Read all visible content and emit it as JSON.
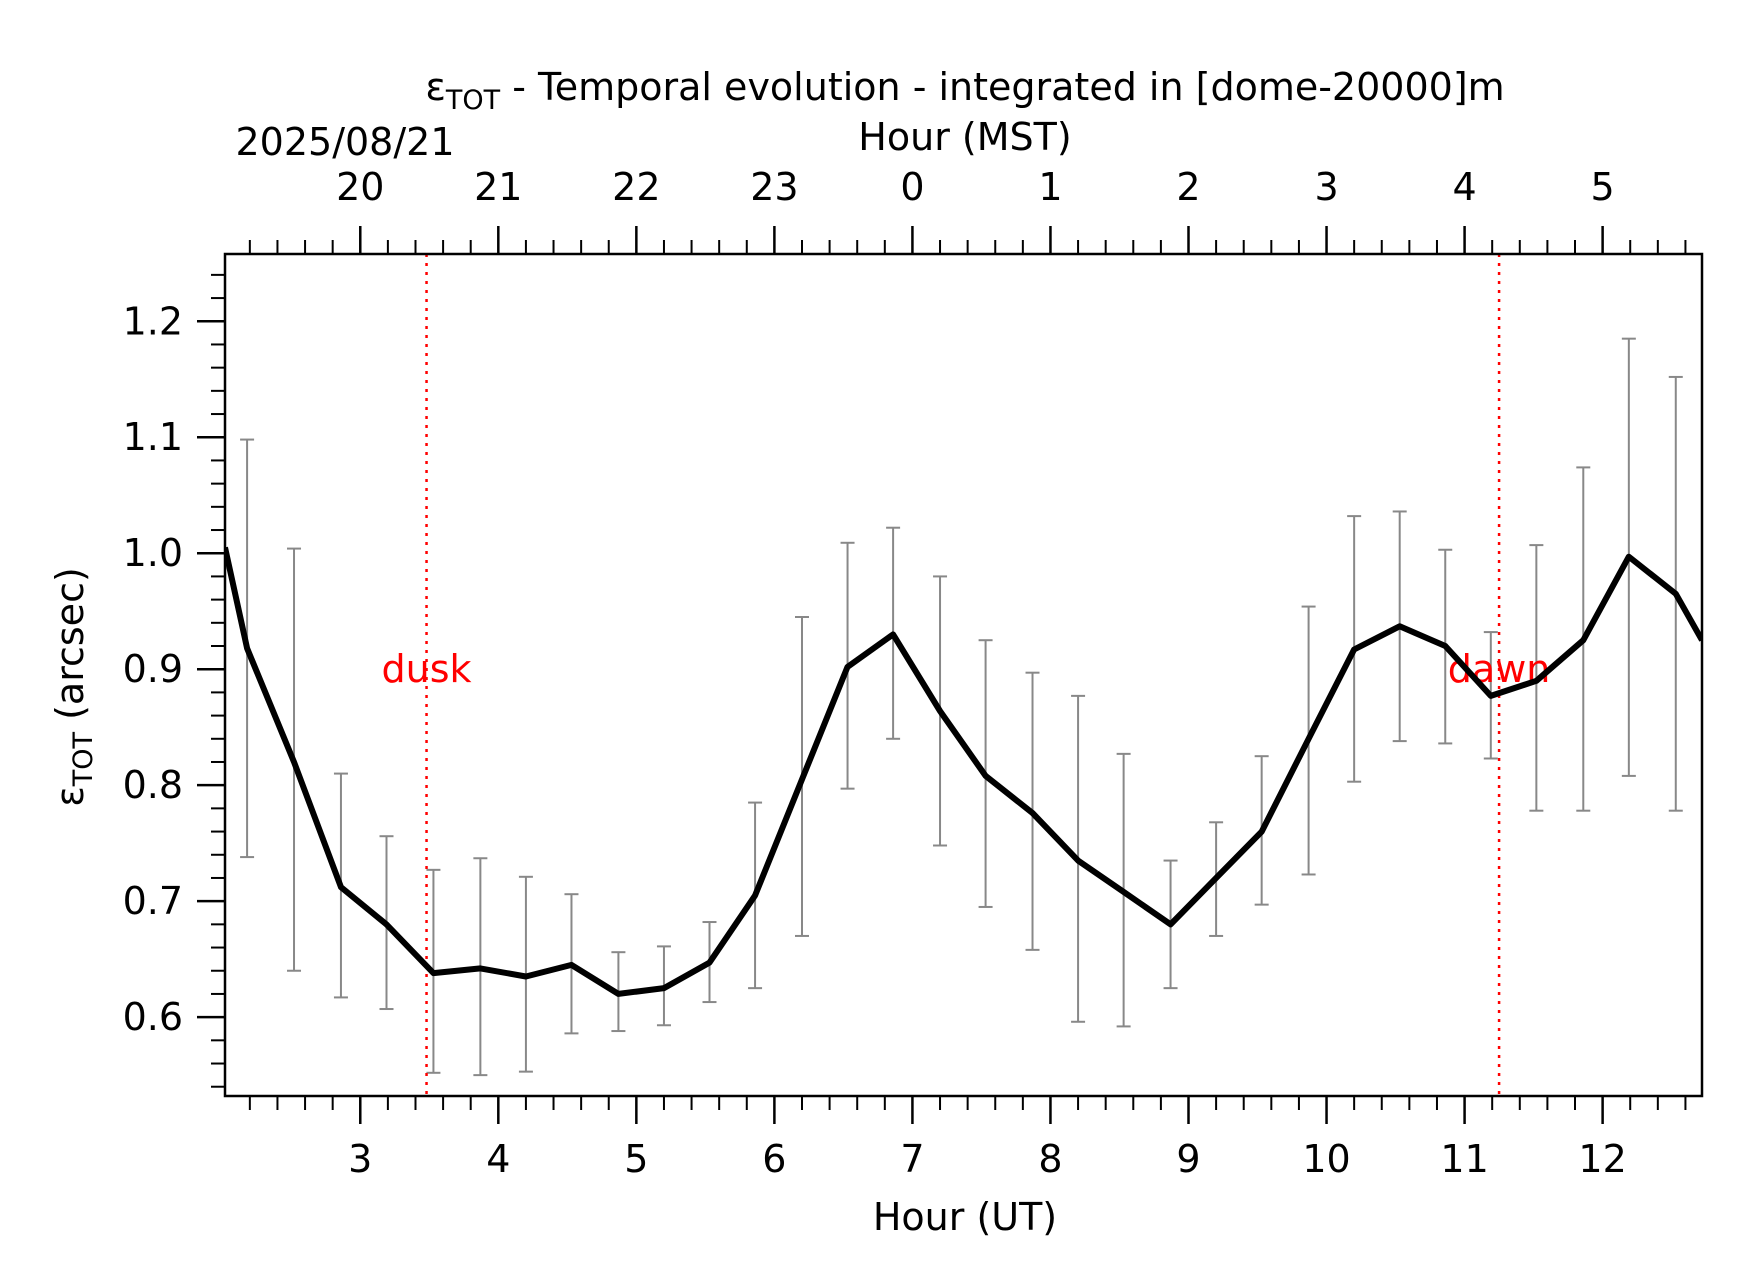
{
  "chart_data": {
    "type": "line",
    "title_main": "ε",
    "title_sub": "TOT",
    "title_rest": " - Temporal evolution - integrated in [dome-20000]m",
    "date_label": "2025/08/21",
    "xlabel": "Hour (UT)",
    "x2label": "Hour (MST)",
    "ylabel_main": "ε",
    "ylabel_sub": "TOT",
    "ylabel_rest": " (arcsec)",
    "xlim": [
      2.02,
      12.72
    ],
    "ylim": [
      0.532,
      1.258
    ],
    "x_ticks": [
      3,
      4,
      5,
      6,
      7,
      8,
      9,
      10,
      11,
      12
    ],
    "x_tick_labels": [
      "3",
      "4",
      "5",
      "6",
      "7",
      "8",
      "9",
      "10",
      "11",
      "12"
    ],
    "y_ticks": [
      0.6,
      0.7,
      0.8,
      0.9,
      1.0,
      1.1,
      1.2
    ],
    "y_tick_labels": [
      "0.6",
      "0.7",
      "0.8",
      "0.9",
      "1.0",
      "1.1",
      "1.2"
    ],
    "top_ticks_ut": [
      3,
      4,
      5,
      6,
      7,
      8,
      9,
      10,
      11,
      12
    ],
    "top_tick_labels": [
      "20",
      "21",
      "22",
      "23",
      "0",
      "1",
      "2",
      "3",
      "4",
      "5"
    ],
    "markers": [
      {
        "x": 3.48,
        "label": "dusk"
      },
      {
        "x": 11.25,
        "label": "dawn"
      }
    ],
    "colors": {
      "line": "#000000",
      "errorbar": "#888888",
      "marker": "#ff0000"
    },
    "series": [
      {
        "x": [
          2.02,
          2.18,
          2.52,
          2.86,
          3.19,
          3.53,
          3.87,
          4.2,
          4.53,
          4.87,
          5.2,
          5.53,
          5.86,
          6.2,
          6.53,
          6.86,
          7.2,
          7.53,
          7.87,
          8.2,
          8.53,
          8.87,
          9.2,
          9.53,
          9.87,
          10.2,
          10.53,
          10.86,
          11.19,
          11.52,
          11.86,
          12.19,
          12.53,
          12.72
        ],
        "y": [
          1.005,
          0.918,
          0.82,
          0.712,
          0.68,
          0.638,
          0.642,
          0.635,
          0.645,
          0.62,
          0.625,
          0.647,
          0.705,
          0.805,
          0.902,
          0.93,
          0.864,
          0.808,
          0.776,
          0.735,
          0.708,
          0.68,
          0.72,
          0.76,
          0.84,
          0.917,
          0.937,
          0.92,
          0.877,
          0.89,
          0.925,
          0.997,
          0.965,
          0.925
        ],
        "err_low": [
          null,
          0.738,
          0.64,
          0.617,
          0.607,
          0.552,
          0.55,
          0.553,
          0.586,
          0.588,
          0.593,
          0.613,
          0.625,
          0.67,
          0.797,
          0.84,
          0.748,
          0.695,
          0.658,
          0.596,
          0.592,
          0.625,
          0.67,
          0.697,
          0.723,
          0.803,
          0.838,
          0.836,
          0.823,
          0.778,
          0.778,
          0.808,
          0.778,
          null
        ],
        "err_high": [
          null,
          1.098,
          1.004,
          0.81,
          0.756,
          0.727,
          0.737,
          0.721,
          0.706,
          0.656,
          0.661,
          0.682,
          0.785,
          0.945,
          1.009,
          1.022,
          0.98,
          0.925,
          0.897,
          0.877,
          0.827,
          0.735,
          0.768,
          0.825,
          0.954,
          1.032,
          1.036,
          1.003,
          0.932,
          1.007,
          1.074,
          1.185,
          1.152,
          null
        ]
      }
    ]
  }
}
